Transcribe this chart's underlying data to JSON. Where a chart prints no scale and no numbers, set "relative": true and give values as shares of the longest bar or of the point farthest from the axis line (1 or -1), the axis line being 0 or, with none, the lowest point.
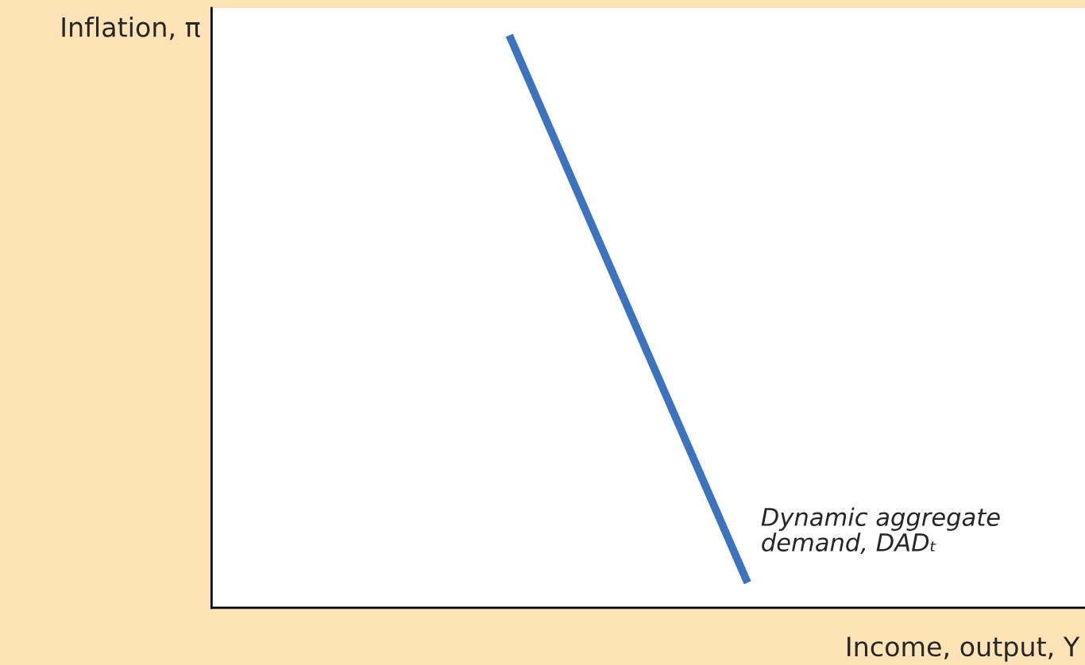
{
  "chart_data": {
    "type": "line",
    "relative": true,
    "xlabel": "Income, output, Y",
    "ylabel": "Inflation, π",
    "categories": [
      null,
      null,
      null,
      null,
      null,
      null,
      null,
      null,
      null,
      null,
      null,
      null,
      null,
      null,
      null,
      null,
      null,
      null,
      null,
      null,
      null,
      null
    ],
    "series": [
      {
        "color": "#3b73c1",
        "values": [
          null,
          null,
          null,
          null,
          null,
          null,
          null,
          1,
          null,
          null,
          null,
          null,
          null,
          0.044,
          null,
          null,
          null,
          null,
          null,
          null,
          null,
          null
        ]
      }
    ],
    "annotations": [
      "Dynamic aggregate\ndemand, DADₜ"
    ],
    "marker": "none",
    "line_style": "solid"
  }
}
